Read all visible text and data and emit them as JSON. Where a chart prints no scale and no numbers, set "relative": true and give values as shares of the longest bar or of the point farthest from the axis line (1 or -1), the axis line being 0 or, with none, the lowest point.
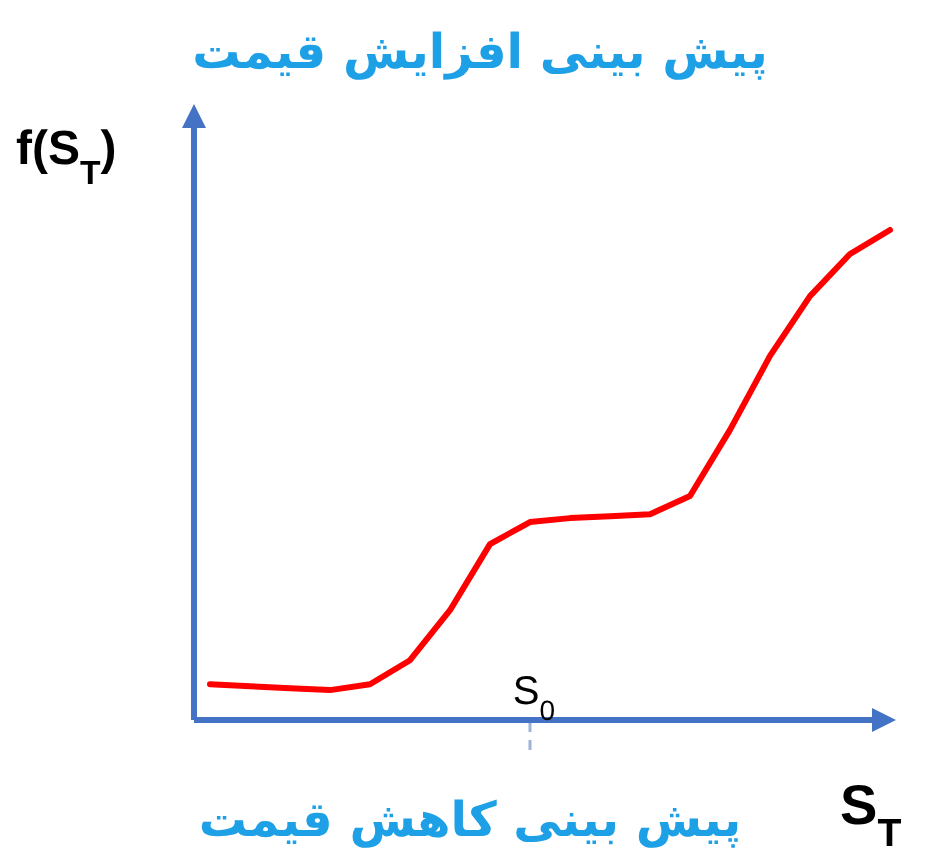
{
  "chart_data": {
    "type": "line",
    "relative": true,
    "title": "پیش بینی افزایش قیمت",
    "annotations": [
      "پیش بینی کاهش قیمت",
      "S$_{0}$"
    ],
    "xlabel": "S$_{T}$",
    "ylabel": "f(S$_{T}$)",
    "categories": [
      null,
      null,
      null,
      null,
      null,
      null,
      null,
      null,
      null,
      null,
      null,
      null,
      null,
      null,
      null,
      null,
      null,
      null
    ],
    "series": [
      {
        "color": "#ff0000",
        "values": [
          0.073,
          0.069,
          0.065,
          0.061,
          0.073,
          0.122,
          0.224,
          0.359,
          0.404,
          0.412,
          0.416,
          0.42,
          0.457,
          0.592,
          0.743,
          0.865,
          0.951,
          1
        ]
      }
    ],
    "marker": "none",
    "line_style": "solid"
  }
}
